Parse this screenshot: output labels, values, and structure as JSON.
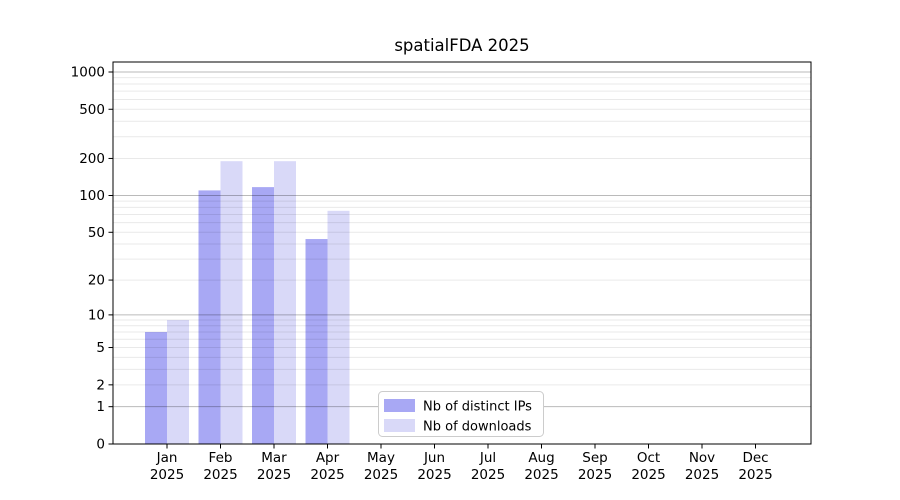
{
  "chart_data": {
    "type": "bar",
    "title": "spatialFDA 2025",
    "year": "2025",
    "categories": [
      "Jan",
      "Feb",
      "Mar",
      "Apr",
      "May",
      "Jun",
      "Jul",
      "Aug",
      "Sep",
      "Oct",
      "Nov",
      "Dec"
    ],
    "series": [
      {
        "name": "Nb of distinct IPs",
        "color": "#a8a8f4",
        "values": [
          7,
          110,
          117,
          44,
          0,
          0,
          0,
          0,
          0,
          0,
          0,
          0
        ]
      },
      {
        "name": "Nb of downloads",
        "color": "#d9d9f8",
        "values": [
          9,
          190,
          190,
          75,
          0,
          0,
          0,
          0,
          0,
          0,
          0,
          0
        ]
      }
    ],
    "y_scale": "log10(1+x)",
    "y_ticks": [
      0,
      1,
      2,
      5,
      10,
      20,
      50,
      100,
      200,
      500,
      1000
    ],
    "ylim": [
      0,
      1205
    ],
    "grid": {
      "major_on": true,
      "minor_on": true,
      "major_color": "#b3b3b3",
      "minor_color": "#ebebeb"
    },
    "legend": {
      "position": "lower-center"
    }
  }
}
